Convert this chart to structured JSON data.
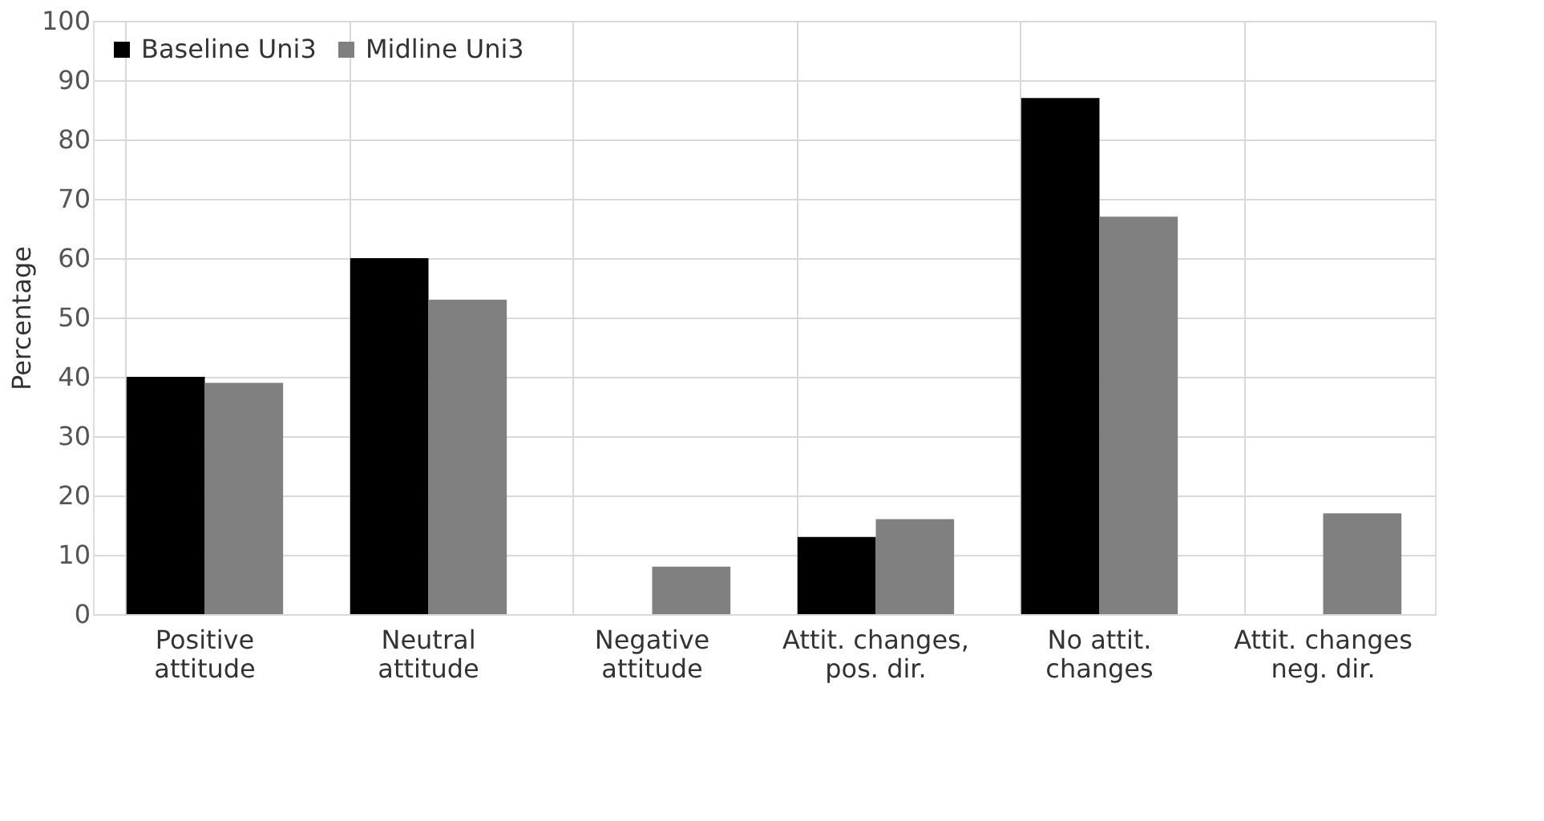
{
  "chart_data": {
    "type": "bar",
    "ylabel": "Percentage",
    "categories": [
      "Positive attitude",
      "Neutral attitude",
      "Negative attitude",
      "Attit. changes, pos. dir.",
      "No attit. changes",
      "Attit. changes neg. dir."
    ],
    "series": [
      {
        "name": "Baseline Uni3",
        "color": "#000000",
        "values": [
          40,
          60,
          0,
          13,
          87,
          0
        ]
      },
      {
        "name": "Midline Uni3",
        "color": "#808080",
        "values": [
          39,
          53,
          8,
          16,
          67,
          17
        ]
      }
    ],
    "ylim": [
      0,
      100
    ],
    "yticks": [
      0,
      10,
      20,
      30,
      40,
      50,
      60,
      70,
      80,
      90,
      100
    ],
    "grid": true,
    "legend": "top left"
  }
}
